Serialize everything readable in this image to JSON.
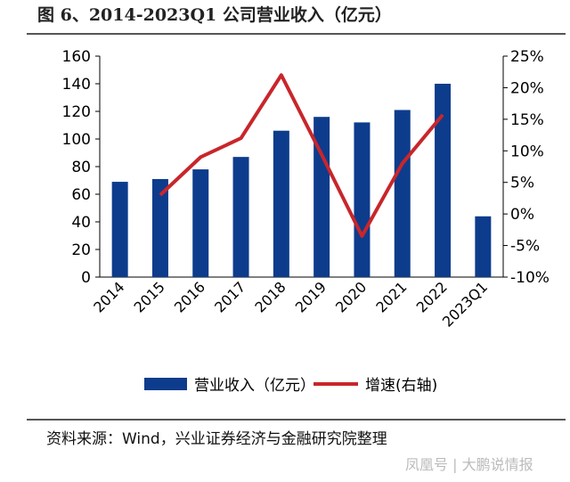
{
  "title": "图 6、2014-2023Q1 公司营业收入（亿元）",
  "source": "资料来源：Wind，兴业证券经济与金融研究院整理",
  "watermark": "凤凰号 | 大鹏说情报",
  "chart_data": {
    "type": "bar+line",
    "categories": [
      "2014",
      "2015",
      "2016",
      "2017",
      "2018",
      "2019",
      "2020",
      "2021",
      "2022",
      "2023Q1"
    ],
    "series": [
      {
        "name": "营业收入（亿元）",
        "type": "bar",
        "axis": "left",
        "color": "#0d3c8c",
        "values": [
          69,
          71,
          78,
          87,
          106,
          116,
          112,
          121,
          140,
          44
        ]
      },
      {
        "name": "增速(右轴)",
        "type": "line",
        "axis": "right",
        "color": "#c8262b",
        "values": [
          null,
          3,
          9,
          12,
          22,
          9.4,
          -3.5,
          8,
          15.7,
          null
        ]
      }
    ],
    "ylim": [
      0,
      160
    ],
    "yticks": [
      "0",
      "20",
      "40",
      "60",
      "80",
      "100",
      "120",
      "140",
      "160"
    ],
    "y2lim": [
      -10,
      25
    ],
    "y2ticks": [
      "-10%",
      "-5%",
      "0%",
      "5%",
      "10%",
      "15%",
      "20%",
      "25%"
    ],
    "legend": "bottom",
    "grid": false
  }
}
